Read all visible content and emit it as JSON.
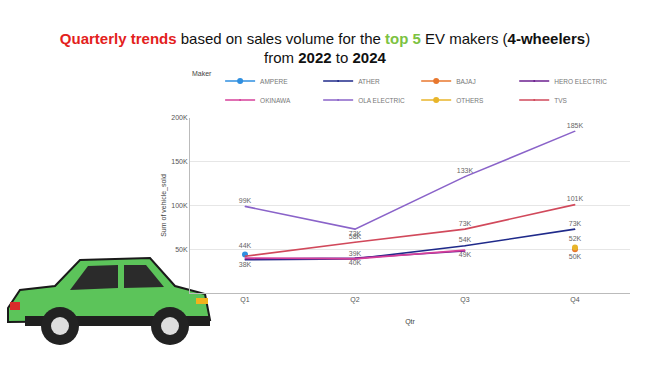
{
  "chart_data": {
    "type": "line",
    "title": [
      [
        {
          "text": "Quarterly trends",
          "color": "#e3211c",
          "bold": true
        },
        {
          "text": " based on sales volume for the "
        },
        {
          "text": "top 5",
          "color": "#7cc242",
          "bold": true
        },
        {
          "text": " EV makers ("
        },
        {
          "text": "4-wheelers",
          "bold": true
        },
        {
          "text": ")"
        }
      ],
      [
        {
          "text": "from "
        },
        {
          "text": "2022",
          "bold": true
        },
        {
          "text": " to "
        },
        {
          "text": "2024",
          "bold": true
        }
      ]
    ],
    "x_label": "Qtr",
    "y_label": "Sum of vehicle_sold",
    "legend_title": "Maker",
    "legend": "top left",
    "categories": [
      "Q1",
      "Q2",
      "Q3",
      "Q4"
    ],
    "series": [
      {
        "name": "AMPERE",
        "color": "#2f8fe0",
        "values": [
          44000,
          null,
          null,
          null
        ],
        "value_labels": [
          "44K",
          null,
          null,
          null
        ]
      },
      {
        "name": "ATHER",
        "color": "#1f2a8a",
        "values": [
          38000,
          39000,
          54000,
          73000
        ],
        "value_labels": [
          "38K",
          null,
          "54K",
          "73K"
        ]
      },
      {
        "name": "BAJAJ",
        "color": "#e8772e",
        "values": [
          null,
          null,
          null,
          50000
        ],
        "value_labels": [
          null,
          null,
          null,
          "50K"
        ]
      },
      {
        "name": "HERO ELECTRIC",
        "color": "#6b1f8f",
        "values": [
          39000,
          40000,
          48000,
          null
        ],
        "value_labels": [
          null,
          "40K",
          null,
          null
        ]
      },
      {
        "name": "OKINAWA",
        "color": "#d6409a",
        "values": [
          40000,
          39000,
          49000,
          null
        ],
        "value_labels": [
          null,
          "39K",
          "49K",
          null
        ]
      },
      {
        "name": "OLA ELECTRIC",
        "color": "#8a63c9",
        "values": [
          99000,
          73000,
          133000,
          185000
        ],
        "value_labels": [
          "99K",
          "73K",
          "133K",
          "185K"
        ]
      },
      {
        "name": "OTHERS",
        "color": "#e8b52a",
        "values": [
          null,
          null,
          null,
          52000
        ],
        "value_labels": [
          null,
          null,
          null,
          "52K"
        ]
      },
      {
        "name": "TVS",
        "color": "#d1495b",
        "values": [
          42000,
          58000,
          73000,
          101000
        ],
        "value_labels": [
          null,
          "58K",
          "73K",
          "101K"
        ]
      }
    ],
    "ylim": [
      0,
      200000
    ],
    "yticks": [
      {
        "value": 50000,
        "label": "50K"
      },
      {
        "value": 100000,
        "label": "100K"
      },
      {
        "value": 150000,
        "label": "150K"
      },
      {
        "value": 200000,
        "label": "200K"
      }
    ],
    "grid": true,
    "data_labels": true
  }
}
